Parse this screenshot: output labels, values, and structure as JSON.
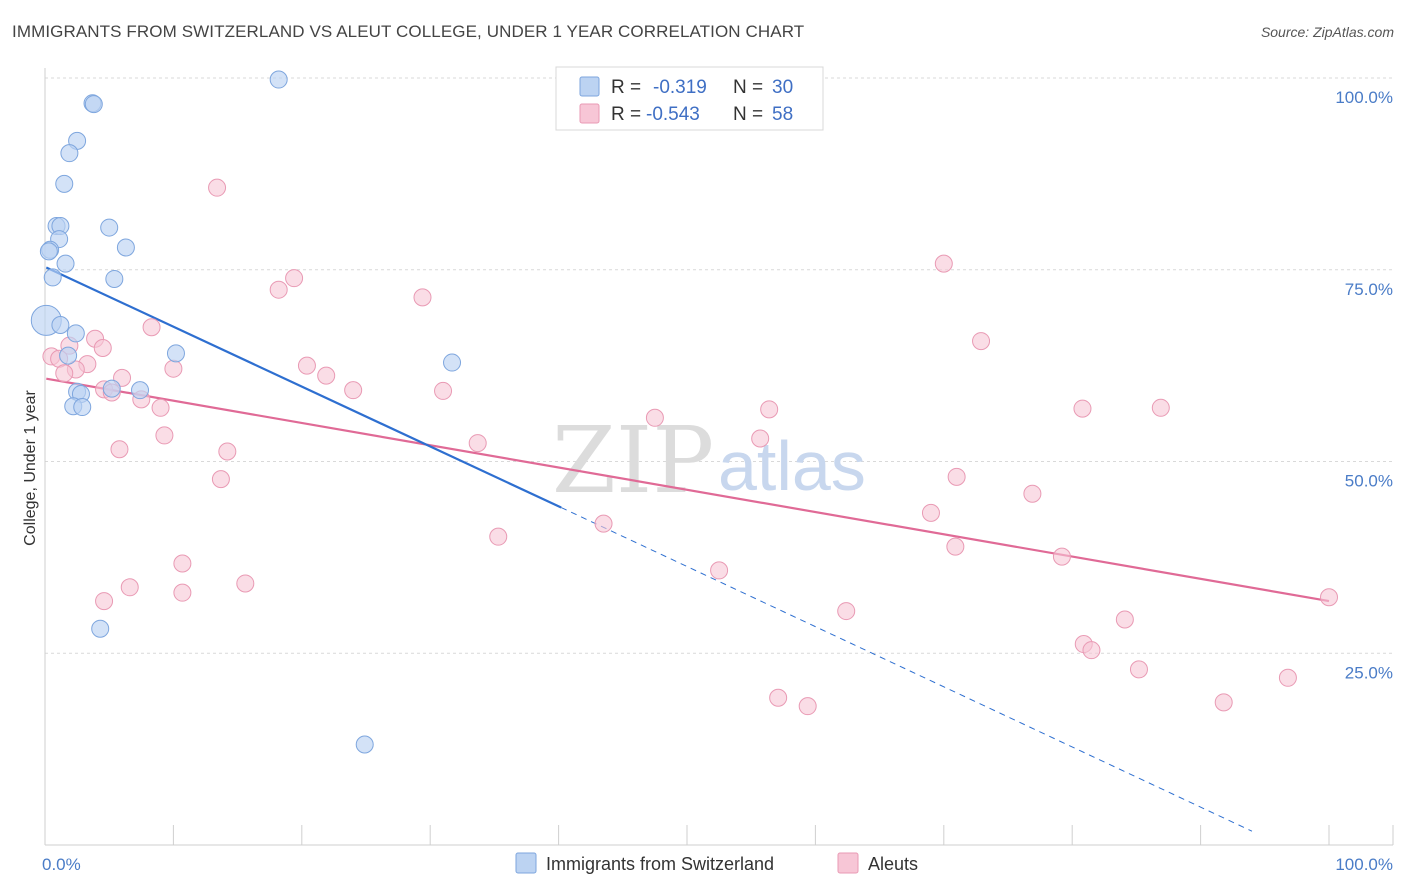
{
  "header": {
    "title": "IMMIGRANTS FROM SWITZERLAND VS ALEUT COLLEGE, UNDER 1 YEAR CORRELATION CHART",
    "source": "Source: ZipAtlas.com"
  },
  "watermark": {
    "zip": "ZIP",
    "atlas": "atlas"
  },
  "colors": {
    "blue_fill": "#bcd3f2",
    "blue_stroke": "#7ea6de",
    "blue_line": "#2e6fd0",
    "pink_fill": "#f7c6d6",
    "pink_stroke": "#e99ab4",
    "pink_line": "#e06a96",
    "grid": "#d9d9d9",
    "axis_text": "#4a7cc7"
  },
  "chart_data": {
    "type": "scatter",
    "title": "IMMIGRANTS FROM SWITZERLAND VS ALEUT COLLEGE, UNDER 1 YEAR CORRELATION CHART",
    "xlabel": "",
    "ylabel": "College, Under 1 year",
    "xlim": [
      0,
      100
    ],
    "ylim": [
      0,
      100
    ],
    "x_tick_labels": [
      "0.0%",
      "100.0%"
    ],
    "y_ticks": [
      25,
      50,
      75,
      100
    ],
    "y_tick_labels": [
      "25.0%",
      "50.0%",
      "75.0%",
      "100.0%"
    ],
    "grid": true,
    "legend": {
      "placement": "top-center",
      "entries": [
        {
          "r_label": "R =",
          "r_value": "-0.319",
          "n_label": "N =",
          "n_value": "30"
        },
        {
          "r_label": "R =",
          "r_value": "-0.543",
          "n_label": "N =",
          "n_value": "58"
        }
      ]
    },
    "series": [
      {
        "name": "Immigrants from Switzerland",
        "color": "#bcd3f2",
        "points": [
          [
            18.2,
            99.8
          ],
          [
            3.7,
            96.7
          ],
          [
            3.8,
            96.6
          ],
          [
            2.5,
            91.8
          ],
          [
            1.9,
            90.2
          ],
          [
            1.5,
            86.2
          ],
          [
            0.9,
            80.7
          ],
          [
            1.2,
            80.7
          ],
          [
            5.0,
            80.5
          ],
          [
            1.1,
            79.0
          ],
          [
            6.3,
            77.9
          ],
          [
            0.4,
            77.6
          ],
          [
            0.3,
            77.4
          ],
          [
            1.6,
            75.8
          ],
          [
            0.6,
            74.0
          ],
          [
            5.4,
            73.8
          ],
          [
            0.1,
            68.4
          ],
          [
            1.2,
            67.8
          ],
          [
            2.4,
            66.7
          ],
          [
            10.2,
            64.1
          ],
          [
            1.8,
            63.8
          ],
          [
            31.7,
            62.9
          ],
          [
            2.5,
            59.1
          ],
          [
            2.8,
            58.8
          ],
          [
            5.2,
            59.5
          ],
          [
            7.4,
            59.3
          ],
          [
            2.2,
            57.2
          ],
          [
            2.9,
            57.1
          ],
          [
            4.3,
            28.2
          ],
          [
            24.9,
            13.1
          ]
        ],
        "trend": {
          "x": [
            0.1,
            40.2
          ],
          "y": [
            75.3,
            44.0
          ],
          "dash_to": [
            94.0,
            1.8
          ]
        }
      },
      {
        "name": "Aleuts",
        "color": "#f7c6d6",
        "points": [
          [
            13.4,
            85.7
          ],
          [
            70.0,
            75.8
          ],
          [
            19.4,
            73.9
          ],
          [
            18.2,
            72.4
          ],
          [
            29.4,
            71.4
          ],
          [
            8.3,
            67.5
          ],
          [
            3.9,
            66.0
          ],
          [
            72.9,
            65.7
          ],
          [
            1.9,
            65.1
          ],
          [
            4.5,
            64.8
          ],
          [
            0.5,
            63.7
          ],
          [
            1.1,
            63.4
          ],
          [
            3.3,
            62.7
          ],
          [
            2.4,
            62.0
          ],
          [
            10.0,
            62.1
          ],
          [
            20.4,
            62.5
          ],
          [
            21.9,
            61.2
          ],
          [
            1.5,
            61.5
          ],
          [
            6.0,
            60.9
          ],
          [
            4.6,
            59.4
          ],
          [
            5.2,
            59.0
          ],
          [
            24.0,
            59.3
          ],
          [
            31.0,
            59.2
          ],
          [
            7.5,
            58.1
          ],
          [
            9.0,
            57.0
          ],
          [
            56.4,
            56.8
          ],
          [
            80.8,
            56.9
          ],
          [
            86.9,
            57.0
          ],
          [
            47.5,
            55.7
          ],
          [
            9.3,
            53.4
          ],
          [
            55.7,
            53.0
          ],
          [
            33.7,
            52.4
          ],
          [
            14.2,
            51.3
          ],
          [
            5.8,
            51.6
          ],
          [
            13.7,
            47.7
          ],
          [
            71.0,
            48.0
          ],
          [
            76.9,
            45.8
          ],
          [
            69.0,
            43.3
          ],
          [
            43.5,
            41.9
          ],
          [
            35.3,
            40.2
          ],
          [
            70.9,
            38.9
          ],
          [
            79.2,
            37.6
          ],
          [
            10.7,
            36.7
          ],
          [
            52.5,
            35.8
          ],
          [
            15.6,
            34.1
          ],
          [
            6.6,
            33.6
          ],
          [
            10.7,
            32.9
          ],
          [
            4.6,
            31.8
          ],
          [
            100.0,
            32.3
          ],
          [
            62.4,
            30.5
          ],
          [
            84.1,
            29.4
          ],
          [
            80.9,
            26.2
          ],
          [
            81.5,
            25.4
          ],
          [
            85.2,
            22.9
          ],
          [
            96.8,
            21.8
          ],
          [
            57.1,
            19.2
          ],
          [
            59.4,
            18.1
          ],
          [
            91.8,
            18.6
          ]
        ],
        "trend": {
          "x": [
            0.1,
            100.0
          ],
          "y": [
            60.8,
            31.8
          ]
        }
      }
    ]
  }
}
